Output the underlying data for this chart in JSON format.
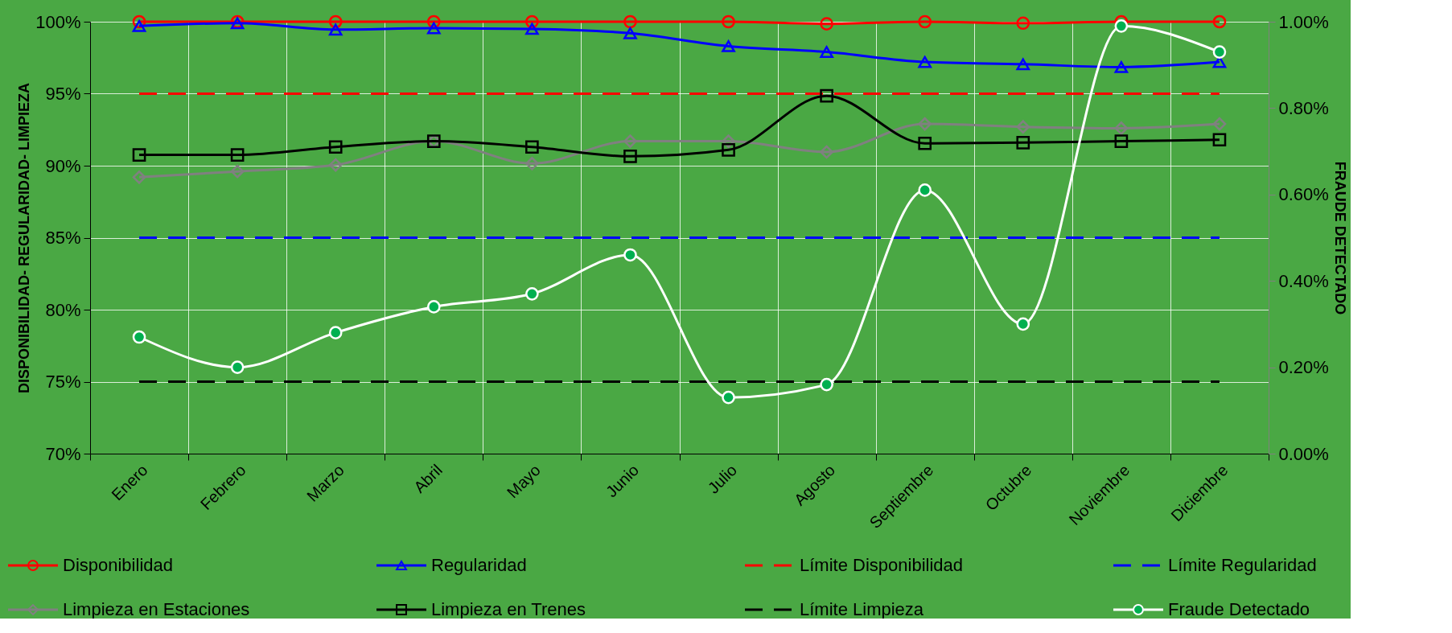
{
  "chart_data": {
    "type": "line",
    "ylabel": "DISPONIBILIDAD- REGULARIDAD- LIMPIEZA",
    "y2label": "FRAUDE DETECTADO",
    "categories": [
      "Enero",
      "Febrero",
      "Marzo",
      "Abril",
      "Mayo",
      "Junio",
      "Julio",
      "Agosto",
      "Septiembre",
      "Octubre",
      "Noviembre",
      "Diciembre"
    ],
    "ylim": [
      70,
      100
    ],
    "yticks": [
      {
        "value": 70,
        "label": "70%"
      },
      {
        "value": 75,
        "label": "75%"
      },
      {
        "value": 80,
        "label": "80%"
      },
      {
        "value": 85,
        "label": "85%"
      },
      {
        "value": 90,
        "label": "90%"
      },
      {
        "value": 95,
        "label": "95%"
      },
      {
        "value": 100,
        "label": "100%"
      }
    ],
    "y2lim": [
      0,
      1
    ],
    "y2ticks": [
      {
        "value": 0,
        "label": "0.00%"
      },
      {
        "value": 0.2,
        "label": "0.20%"
      },
      {
        "value": 0.4,
        "label": "0.40%"
      },
      {
        "value": 0.6,
        "label": "0.60%"
      },
      {
        "value": 0.8,
        "label": "0.80%"
      },
      {
        "value": 1,
        "label": "1.00%"
      }
    ],
    "grid": true,
    "legend": "bottom",
    "series": [
      {
        "name": "Disponibilidad",
        "color": "#ff0000",
        "marker": "circle",
        "line_style": "solid",
        "values": [
          100,
          100,
          100,
          100,
          100,
          100,
          100,
          99.85,
          100,
          99.9,
          100,
          100
        ]
      },
      {
        "name": "Regularidad",
        "color": "#0000ff",
        "marker": "triangle",
        "line_style": "solid",
        "values": [
          99.7,
          99.9,
          99.45,
          99.55,
          99.5,
          99.2,
          98.3,
          97.9,
          97.2,
          97.05,
          96.85,
          97.2
        ]
      },
      {
        "name": "Límite Disponibilidad",
        "color": "#ff0000",
        "marker": "none",
        "line_style": "dashed",
        "values": [
          95,
          95,
          95,
          95,
          95,
          95,
          95,
          95,
          95,
          95,
          95,
          95
        ]
      },
      {
        "name": "Límite Regularidad",
        "color": "#0000ff",
        "marker": "none",
        "line_style": "dashed",
        "values": [
          85,
          85,
          85,
          85,
          85,
          85,
          85,
          85,
          85,
          85,
          85,
          85
        ]
      },
      {
        "name": "Limpieza en Estaciones",
        "color": "#808080",
        "marker": "diamond",
        "line_style": "solid",
        "values": [
          89.2,
          89.6,
          90.05,
          91.7,
          90.15,
          91.7,
          91.7,
          90.95,
          92.9,
          92.7,
          92.6,
          92.9
        ]
      },
      {
        "name": "Limpieza en Trenes",
        "color": "#000000",
        "marker": "square",
        "line_style": "solid",
        "values": [
          90.75,
          90.75,
          91.3,
          91.7,
          91.3,
          90.65,
          91.1,
          94.85,
          91.55,
          91.6,
          91.7,
          91.8
        ]
      },
      {
        "name": "Límite Limpieza",
        "color": "#000000",
        "marker": "none",
        "line_style": "dashed",
        "values": [
          75,
          75,
          75,
          75,
          75,
          75,
          75,
          75,
          75,
          75,
          75,
          75
        ]
      },
      {
        "name": "Fraude Detectado",
        "color": "#ffffff",
        "marker": "circle",
        "line_style": "solid",
        "axis": "y2",
        "values": [
          0.27,
          0.2,
          0.28,
          0.34,
          0.37,
          0.46,
          0.13,
          0.16,
          0.61,
          0.3,
          0.99,
          0.93
        ]
      }
    ]
  }
}
